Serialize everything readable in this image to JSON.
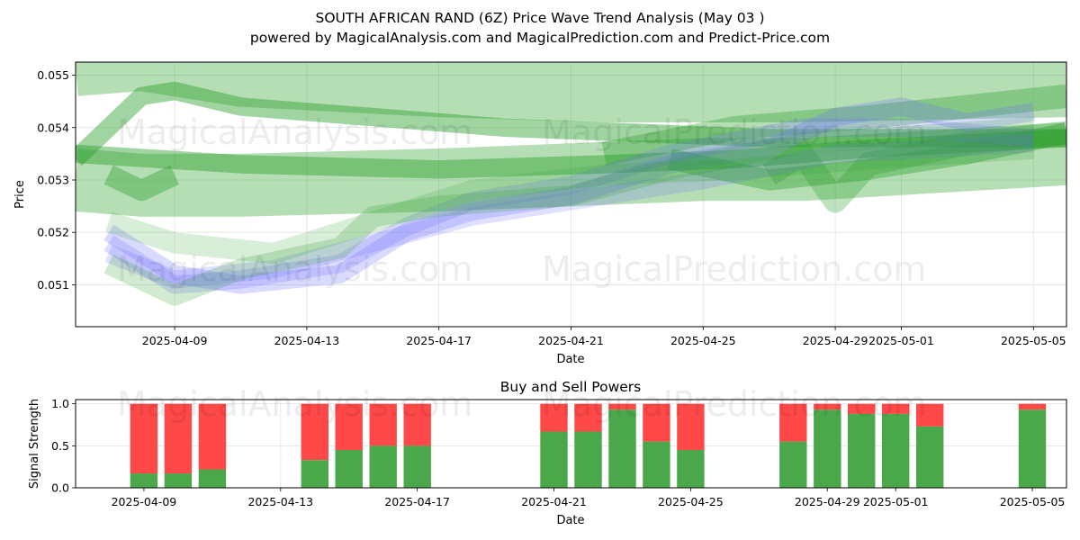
{
  "header": {
    "title": "SOUTH AFRICAN RAND (6Z) Price Wave Trend Analysis (May 03 )",
    "subtitle": "powered by MagicalAnalysis.com and MagicalPrediction.com and Predict-Price.com"
  },
  "watermarks": [
    "MagicalAnalysis.com",
    "MagicalPrediction.com"
  ],
  "chart_data": [
    {
      "type": "area",
      "xlabel": "Date",
      "ylabel": "Price",
      "xlim": [
        "2025-04-06",
        "2025-05-06"
      ],
      "ylim": [
        0.0502,
        0.05525
      ],
      "x_ticks": [
        "2025-04-09",
        "2025-04-13",
        "2025-04-17",
        "2025-04-21",
        "2025-04-25",
        "2025-04-29",
        "2025-05-01",
        "2025-05-05"
      ],
      "y_ticks": [
        0.051,
        0.052,
        0.053,
        0.054,
        0.055
      ],
      "y_tick_labels": [
        "0.051",
        "0.052",
        "0.053",
        "0.054",
        "0.055"
      ],
      "grid": true,
      "series": [
        {
          "color": "#2ca02c",
          "opacity": 0.35,
          "width": 0.0012,
          "points": [
            [
              "2025-04-06",
              0.0552
            ],
            [
              "2025-04-08",
              0.0553
            ],
            [
              "2025-04-11",
              0.055
            ],
            [
              "2025-04-17",
              0.0548
            ],
            [
              "2025-04-22",
              0.0547
            ],
            [
              "2025-04-28",
              0.0547
            ],
            [
              "2025-05-06",
              0.0548
            ]
          ]
        },
        {
          "color": "#2ca02c",
          "opacity": 0.35,
          "width": 0.0012,
          "points": [
            [
              "2025-04-06",
              0.053
            ],
            [
              "2025-04-08",
              0.0529
            ],
            [
              "2025-04-11",
              0.0529
            ],
            [
              "2025-04-17",
              0.053
            ],
            [
              "2025-04-21",
              0.0531
            ],
            [
              "2025-04-25",
              0.0532
            ],
            [
              "2025-04-28",
              0.0532
            ],
            [
              "2025-05-06",
              0.0535
            ]
          ]
        },
        {
          "color": "#2ca02c",
          "opacity": 0.45,
          "width": 0.00035,
          "points": [
            [
              "2025-04-06",
              0.0534
            ],
            [
              "2025-04-08",
              0.0546
            ],
            [
              "2025-04-09",
              0.0547
            ],
            [
              "2025-04-11",
              0.0544
            ],
            [
              "2025-04-15",
              0.0542
            ],
            [
              "2025-04-19",
              0.054
            ],
            [
              "2025-04-23",
              0.0539
            ],
            [
              "2025-04-27",
              0.0538
            ],
            [
              "2025-05-06",
              0.0538
            ]
          ]
        },
        {
          "color": "#2ca02c",
          "opacity": 0.45,
          "width": 0.00035,
          "points": [
            [
              "2025-04-06",
              0.0535
            ],
            [
              "2025-04-11",
              0.0533
            ],
            [
              "2025-04-17",
              0.0532
            ],
            [
              "2025-04-22",
              0.0533
            ],
            [
              "2025-04-26",
              0.0534
            ],
            [
              "2025-04-30",
              0.0536
            ],
            [
              "2025-05-06",
              0.0538
            ]
          ]
        },
        {
          "color": "#2ca02c",
          "opacity": 0.4,
          "width": 0.0004,
          "points": [
            [
              "2025-04-24",
              0.0534
            ],
            [
              "2025-04-27",
              0.053
            ],
            [
              "2025-04-30",
              0.0532
            ],
            [
              "2025-05-03",
              0.0535
            ],
            [
              "2025-05-06",
              0.0539
            ]
          ]
        },
        {
          "color": "#2ca02c",
          "opacity": 0.35,
          "width": 0.00045,
          "points": [
            [
              "2025-04-22",
              0.0535
            ],
            [
              "2025-04-26",
              0.054
            ],
            [
              "2025-04-30",
              0.0542
            ],
            [
              "2025-05-03",
              0.0544
            ],
            [
              "2025-05-06",
              0.0546
            ]
          ]
        },
        {
          "color": "#2ca02c",
          "opacity": 0.3,
          "width": 0.00045,
          "points": [
            [
              "2025-04-27",
              0.0531
            ],
            [
              "2025-04-28",
              0.0535
            ],
            [
              "2025-04-29",
              0.0526
            ],
            [
              "2025-04-30",
              0.0533
            ],
            [
              "2025-05-03",
              0.0537
            ],
            [
              "2025-05-06",
              0.0539
            ]
          ]
        },
        {
          "color": "#6b6bff",
          "opacity": 0.25,
          "width": 0.00035,
          "points": [
            [
              "2025-04-07",
              0.052
            ],
            [
              "2025-04-09",
              0.0512
            ],
            [
              "2025-04-11",
              0.051
            ],
            [
              "2025-04-14",
              0.0512
            ],
            [
              "2025-04-16",
              0.052
            ],
            [
              "2025-04-18",
              0.0524
            ],
            [
              "2025-04-21",
              0.0527
            ],
            [
              "2025-04-24",
              0.0533
            ],
            [
              "2025-04-27",
              0.0536
            ],
            [
              "2025-04-29",
              0.0542
            ],
            [
              "2025-05-01",
              0.0544
            ],
            [
              "2025-05-03",
              0.0541
            ],
            [
              "2025-05-05",
              0.0543
            ]
          ]
        },
        {
          "color": "#6b6bff",
          "opacity": 0.22,
          "width": 0.00035,
          "points": [
            [
              "2025-04-07",
              0.0518
            ],
            [
              "2025-04-09",
              0.051
            ],
            [
              "2025-04-11",
              0.0511
            ],
            [
              "2025-04-14",
              0.0514
            ],
            [
              "2025-04-16",
              0.0521
            ],
            [
              "2025-04-18",
              0.0526
            ],
            [
              "2025-04-21",
              0.0529
            ],
            [
              "2025-04-24",
              0.0535
            ],
            [
              "2025-04-28",
              0.054
            ],
            [
              "2025-05-01",
              0.054
            ],
            [
              "2025-05-05",
              0.0538
            ]
          ]
        },
        {
          "color": "#6b6bff",
          "opacity": 0.2,
          "width": 0.00035,
          "points": [
            [
              "2025-04-07",
              0.0516
            ],
            [
              "2025-04-09",
              0.0511
            ],
            [
              "2025-04-12",
              0.0513
            ],
            [
              "2025-04-15",
              0.0518
            ],
            [
              "2025-04-18",
              0.0523
            ],
            [
              "2025-04-21",
              0.0526
            ],
            [
              "2025-04-25",
              0.053
            ],
            [
              "2025-04-29",
              0.0535
            ],
            [
              "2025-05-05",
              0.0537
            ]
          ]
        },
        {
          "color": "#2ca02c",
          "opacity": 0.22,
          "width": 0.0004,
          "points": [
            [
              "2025-04-07",
              0.0514
            ],
            [
              "2025-04-09",
              0.0508
            ],
            [
              "2025-04-11",
              0.0513
            ],
            [
              "2025-04-14",
              0.0517
            ],
            [
              "2025-04-15",
              0.0523
            ],
            [
              "2025-04-17",
              0.0525
            ],
            [
              "2025-04-21",
              0.0527
            ],
            [
              "2025-04-24",
              0.0532
            ],
            [
              "2025-04-28",
              0.0537
            ],
            [
              "2025-05-05",
              0.054
            ]
          ]
        },
        {
          "color": "#2ca02c",
          "opacity": 0.18,
          "width": 0.0004,
          "points": [
            [
              "2025-04-07",
              0.0522
            ],
            [
              "2025-04-09",
              0.0518
            ],
            [
              "2025-04-12",
              0.0516
            ],
            [
              "2025-04-15",
              0.0522
            ],
            [
              "2025-04-18",
              0.0528
            ],
            [
              "2025-04-22",
              0.0531
            ],
            [
              "2025-04-26",
              0.0532
            ],
            [
              "2025-04-30",
              0.0534
            ],
            [
              "2025-05-05",
              0.0536
            ]
          ]
        },
        {
          "color": "#2ca02c",
          "opacity": 0.4,
          "width": 0.0004,
          "points": [
            [
              "2025-04-07",
              0.0531
            ],
            [
              "2025-04-08",
              0.0528
            ],
            [
              "2025-04-09",
              0.0531
            ]
          ]
        }
      ]
    },
    {
      "type": "bar",
      "title": "Buy and Sell Powers",
      "xlabel": "Date",
      "ylabel": "Signal Strength",
      "xlim": [
        "2025-04-07",
        "2025-05-06"
      ],
      "ylim": [
        0,
        1.05
      ],
      "y_ticks": [
        0.0,
        0.5,
        1.0
      ],
      "y_tick_labels": [
        "0.0",
        "0.5",
        "1.0"
      ],
      "x_ticks": [
        "2025-04-09",
        "2025-04-13",
        "2025-04-17",
        "2025-04-21",
        "2025-04-25",
        "2025-04-29",
        "2025-05-01",
        "2025-05-05"
      ],
      "grid": true,
      "buy_color": "#4aa84a",
      "sell_color": "#ff4848",
      "bars": [
        {
          "date": "2025-04-09",
          "buy": 0.17
        },
        {
          "date": "2025-04-10",
          "buy": 0.17
        },
        {
          "date": "2025-04-11",
          "buy": 0.22
        },
        {
          "date": "2025-04-14",
          "buy": 0.33
        },
        {
          "date": "2025-04-15",
          "buy": 0.45
        },
        {
          "date": "2025-04-16",
          "buy": 0.5
        },
        {
          "date": "2025-04-17",
          "buy": 0.5
        },
        {
          "date": "2025-04-21",
          "buy": 0.67
        },
        {
          "date": "2025-04-22",
          "buy": 0.67
        },
        {
          "date": "2025-04-23",
          "buy": 0.93
        },
        {
          "date": "2025-04-24",
          "buy": 0.55
        },
        {
          "date": "2025-04-25",
          "buy": 0.45
        },
        {
          "date": "2025-04-28",
          "buy": 0.55
        },
        {
          "date": "2025-04-29",
          "buy": 0.93
        },
        {
          "date": "2025-04-30",
          "buy": 0.88
        },
        {
          "date": "2025-05-01",
          "buy": 0.88
        },
        {
          "date": "2025-05-02",
          "buy": 0.73
        },
        {
          "date": "2025-05-05",
          "buy": 0.93
        }
      ]
    }
  ]
}
